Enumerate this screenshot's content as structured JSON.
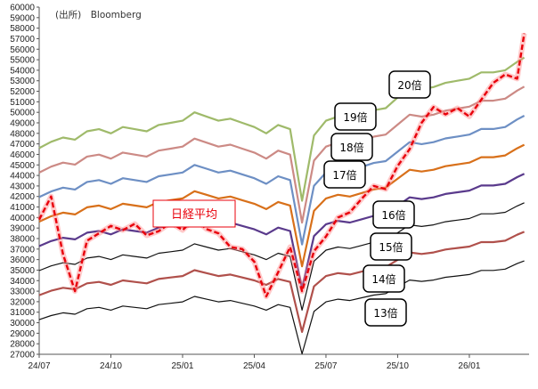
{
  "chart_data": {
    "type": "line",
    "source": "(出所)　Bloomberg",
    "yticks": [
      27000,
      28000,
      29000,
      30000,
      31000,
      32000,
      33000,
      34000,
      35000,
      36000,
      37000,
      38000,
      39000,
      40000,
      41000,
      42000,
      43000,
      44000,
      45000,
      46000,
      47000,
      48000,
      49000,
      50000,
      51000,
      52000,
      53000,
      54000,
      55000,
      56000,
      57000,
      58000,
      59000,
      60000
    ],
    "ylim": [
      27000,
      60000
    ],
    "xlim": [
      0,
      20.5
    ],
    "xticks": [
      {
        "label": "24/07",
        "pos": 0
      },
      {
        "label": "24/10",
        "pos": 3
      },
      {
        "label": "25/01",
        "pos": 6
      },
      {
        "label": "25/04",
        "pos": 9
      },
      {
        "label": "25/07",
        "pos": 12
      },
      {
        "label": "25/10",
        "pos": 15
      },
      {
        "label": "26/01",
        "pos": 18
      }
    ],
    "x": [
      0,
      0.5,
      1,
      1.5,
      2,
      2.5,
      3,
      3.5,
      4,
      4.5,
      5,
      5.5,
      6,
      6.5,
      7,
      7.5,
      8,
      8.5,
      9,
      9.5,
      10,
      10.5,
      11,
      11.5,
      12,
      12.5,
      13,
      13.5,
      14,
      14.5,
      15,
      15.5,
      16,
      16.5,
      17,
      17.5,
      18,
      18.5,
      19,
      19.5,
      20,
      20.3
    ],
    "per_multiples": [
      {
        "name": "13倍",
        "multiple": 13,
        "color": "#111111"
      },
      {
        "name": "14倍",
        "multiple": 14,
        "color": "#b0504b"
      },
      {
        "name": "15倍",
        "multiple": 15,
        "color": "#111111"
      },
      {
        "name": "16倍",
        "multiple": 16,
        "color": "#5a3a8c"
      },
      {
        "name": "17倍",
        "multiple": 17,
        "color": "#d8701a"
      },
      {
        "name": "18倍",
        "multiple": 18,
        "color": "#6d8fc4"
      },
      {
        "name": "19倍",
        "multiple": 19,
        "color": "#cc8a85"
      },
      {
        "name": "20倍",
        "multiple": 20,
        "color": "#9fba6a"
      }
    ],
    "eps": [
      2330,
      2360,
      2380,
      2370,
      2410,
      2420,
      2400,
      2430,
      2420,
      2410,
      2440,
      2450,
      2460,
      2500,
      2480,
      2460,
      2470,
      2450,
      2430,
      2400,
      2440,
      2420,
      2080,
      2390,
      2460,
      2480,
      2470,
      2490,
      2510,
      2520,
      2570,
      2620,
      2610,
      2620,
      2640,
      2650,
      2660,
      2690,
      2690,
      2700,
      2740,
      2760
    ],
    "series": [
      {
        "name": "日経平均",
        "color": "#e8000b",
        "values": [
          39800,
          42000,
          36500,
          33000,
          37800,
          38500,
          39200,
          38800,
          39400,
          38300,
          38700,
          39500,
          38800,
          39900,
          38900,
          38500,
          37200,
          37000,
          35800,
          32500,
          34800,
          37200,
          33000,
          36800,
          38200,
          40000,
          40500,
          41800,
          43000,
          42700,
          44900,
          46500,
          49000,
          50500,
          49800,
          50400,
          49600,
          51200,
          52800,
          53600,
          53200,
          57500
        ]
      }
    ],
    "labels": {
      "nikkei": "日経平均",
      "m13": "13倍",
      "m14": "14倍",
      "m15": "15倍",
      "m16": "16倍",
      "m17": "17倍",
      "m18": "18倍",
      "m19": "19倍",
      "m20": "20倍"
    }
  }
}
